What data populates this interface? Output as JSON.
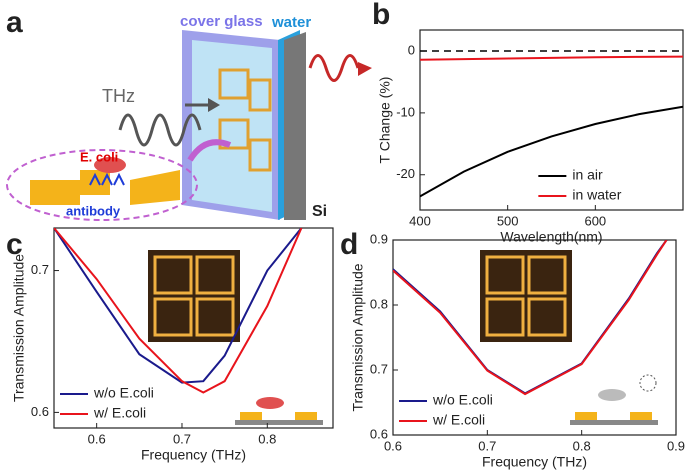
{
  "panel_labels": [
    "a",
    "b",
    "c",
    "d"
  ],
  "diagram": {
    "cover_glass": "cover glass",
    "water": "water",
    "thz": "THz",
    "bacterium": "E. coli",
    "antibody": "antibody",
    "substrate": "Si"
  },
  "chart_data": [
    {
      "type": "line",
      "x_label": "Wavelength(nm)",
      "y_label": "T Change (%)",
      "x": [
        400,
        450,
        500,
        550,
        600,
        650,
        700
      ],
      "series": [
        {
          "name": "in air",
          "color": "#000000",
          "values": [
            -23.5,
            -19.5,
            -16.3,
            -13.8,
            -11.8,
            -10.2,
            -9
          ]
        },
        {
          "name": "in water",
          "color": "#e8141c",
          "values": [
            -1.4,
            -1.3,
            -1.2,
            -1.1,
            -1.0,
            -0.95,
            -0.9
          ]
        }
      ],
      "reference_line": 0,
      "xlim": [
        400,
        700
      ],
      "ylim": [
        -25.7,
        3.4
      ],
      "xticks": [
        400,
        500,
        600
      ],
      "yticks": [
        -20,
        -10,
        0
      ],
      "legend": "lower-right"
    },
    {
      "type": "line",
      "x_label": "Frequency (THz)",
      "y_label": "Transmission Amplitude",
      "x": [
        0.55,
        0.6,
        0.65,
        0.7,
        0.725,
        0.75,
        0.8,
        0.84
      ],
      "series": [
        {
          "name": "w/o E.coli",
          "color": "#1a1a8c",
          "values": [
            0.73,
            0.685,
            0.641,
            0.621,
            0.622,
            0.64,
            0.7,
            0.73
          ]
        },
        {
          "name": "w/ E.coli",
          "color": "#e8141c",
          "values": [
            0.73,
            0.694,
            0.652,
            0.622,
            0.614,
            0.622,
            0.675,
            0.73
          ]
        }
      ],
      "xlim": [
        0.55,
        0.877
      ],
      "ylim": [
        0.589,
        0.73
      ],
      "xticks": [
        0.6,
        0.7,
        0.8
      ],
      "yticks": [
        0.6,
        0.7
      ],
      "legend": "lower-left"
    },
    {
      "type": "line",
      "x_label": "Frequency (THz)",
      "y_label": "Transmission Amplitude",
      "x": [
        0.6,
        0.65,
        0.7,
        0.74,
        0.8,
        0.85,
        0.88,
        0.89
      ],
      "series": [
        {
          "name": "w/o E.coli",
          "color": "#1a1a8c",
          "values": [
            0.855,
            0.79,
            0.7,
            0.664,
            0.71,
            0.81,
            0.88,
            0.9
          ]
        },
        {
          "name": "w/ E.coli",
          "color": "#e8141c",
          "values": [
            0.853,
            0.788,
            0.699,
            0.663,
            0.709,
            0.808,
            0.878,
            0.9
          ]
        }
      ],
      "xlim": [
        0.6,
        0.9
      ],
      "ylim": [
        0.6,
        0.9
      ],
      "xticks": [
        0.6,
        0.7,
        0.8,
        0.9
      ],
      "yticks": [
        0.6,
        0.7,
        0.8,
        0.9
      ],
      "legend": "lower-left"
    }
  ]
}
